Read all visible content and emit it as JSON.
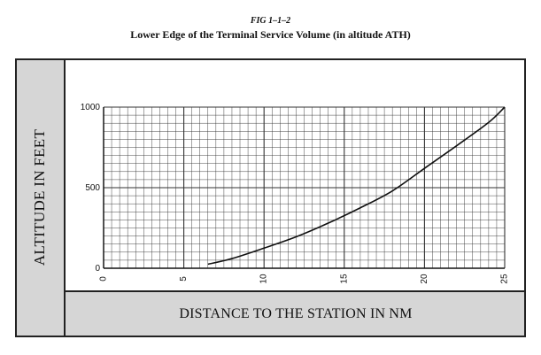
{
  "header": {
    "figure_number": "FIG 1–1–2",
    "title": "Lower Edge of the Terminal Service Volume (in altitude ATH)"
  },
  "chart_data": {
    "type": "line",
    "title": "Lower Edge of the Terminal Service Volume (in altitude ATH)",
    "xlabel": "DISTANCE TO THE STATION IN NM",
    "ylabel": "ALTITUDE IN FEET",
    "xlim": [
      0,
      25
    ],
    "ylim": [
      0,
      1000
    ],
    "x_ticks": [
      "0",
      "5",
      "10",
      "15",
      "20",
      "25"
    ],
    "y_ticks": [
      "0",
      "500",
      "1000"
    ],
    "grid": true,
    "series": [
      {
        "color": "#111111",
        "x": [
          6.5,
          8,
          10,
          12,
          14,
          16,
          18,
          20,
          22,
          24,
          25
        ],
        "y": [
          25,
          60,
          125,
          195,
          280,
          375,
          480,
          620,
          760,
          905,
          1000
        ]
      }
    ]
  }
}
